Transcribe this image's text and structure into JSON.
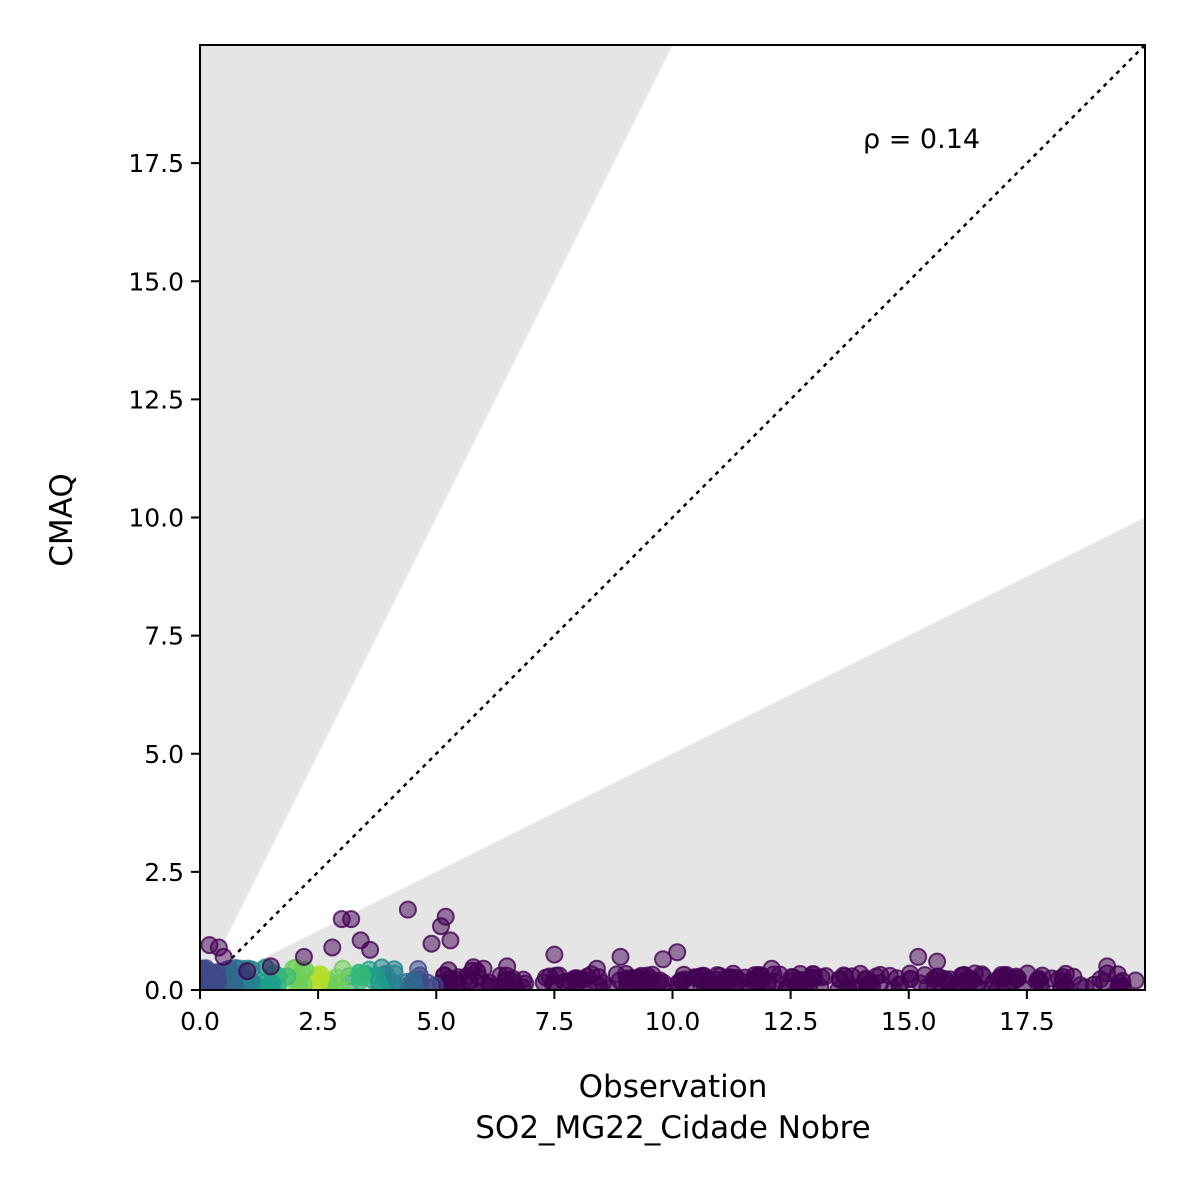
{
  "chart_data": {
    "type": "scatter",
    "xlabel": "Observation",
    "xlabel_line2": "SO2_MG22_Cidade Nobre",
    "ylabel": "CMAQ",
    "xlim": [
      0,
      20
    ],
    "ylim": [
      0,
      20
    ],
    "xticks": [
      "0.0",
      "2.5",
      "5.0",
      "7.5",
      "10.0",
      "12.5",
      "15.0",
      "17.5"
    ],
    "yticks": [
      "0.0",
      "2.5",
      "5.0",
      "7.5",
      "10.0",
      "12.5",
      "15.0",
      "17.5"
    ],
    "annotation": "ρ = 0.14",
    "reference_line": {
      "style": "dotted",
      "slope": 1
    },
    "shaded_regions": [
      {
        "description": "above factor-of-2 line",
        "slope": 2
      },
      {
        "description": "below factor-of-2 line",
        "slope": 0.5
      }
    ],
    "grid": false,
    "colormap": "viridis (point density)",
    "points": [
      {
        "x": 0.2,
        "y": 0.95
      },
      {
        "x": 0.4,
        "y": 0.9
      },
      {
        "x": 0.5,
        "y": 0.7
      },
      {
        "x": 3.0,
        "y": 1.5
      },
      {
        "x": 3.2,
        "y": 1.5
      },
      {
        "x": 4.4,
        "y": 1.7
      },
      {
        "x": 5.2,
        "y": 1.55
      },
      {
        "x": 5.1,
        "y": 1.35
      },
      {
        "x": 5.3,
        "y": 1.05
      },
      {
        "x": 4.9,
        "y": 0.98
      },
      {
        "x": 3.4,
        "y": 1.05
      },
      {
        "x": 3.6,
        "y": 0.85
      },
      {
        "x": 2.8,
        "y": 0.9
      },
      {
        "x": 2.2,
        "y": 0.7
      },
      {
        "x": 7.5,
        "y": 0.75
      },
      {
        "x": 8.9,
        "y": 0.7
      },
      {
        "x": 9.8,
        "y": 0.65
      },
      {
        "x": 10.1,
        "y": 0.8
      },
      {
        "x": 8.4,
        "y": 0.45
      },
      {
        "x": 12.1,
        "y": 0.45
      },
      {
        "x": 15.2,
        "y": 0.7
      },
      {
        "x": 15.6,
        "y": 0.6
      },
      {
        "x": 16.4,
        "y": 0.35
      },
      {
        "x": 19.2,
        "y": 0.5
      },
      {
        "x": 19.8,
        "y": 0.2
      },
      {
        "x": 17.2,
        "y": 0.2
      },
      {
        "x": 14.6,
        "y": 0.3
      },
      {
        "x": 13.0,
        "y": 0.25
      },
      {
        "x": 11.0,
        "y": 0.3
      },
      {
        "x": 6.5,
        "y": 0.5
      },
      {
        "x": 6.0,
        "y": 0.45
      },
      {
        "x": 1.5,
        "y": 0.5
      },
      {
        "x": 1.0,
        "y": 0.4
      }
    ]
  }
}
